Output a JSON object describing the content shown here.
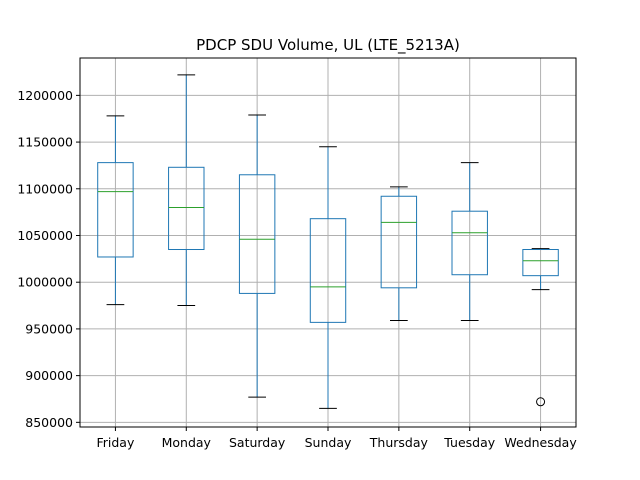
{
  "chart_data": {
    "type": "box",
    "title": "PDCP SDU Volume, UL (LTE_5213A)",
    "xlabel": "",
    "ylabel": "",
    "ylim": [
      845000,
      1240000
    ],
    "grid": true,
    "legend": "none",
    "yticks": [
      850000,
      900000,
      950000,
      1000000,
      1050000,
      1100000,
      1150000,
      1200000
    ],
    "categories": [
      "Friday",
      "Monday",
      "Saturday",
      "Sunday",
      "Thursday",
      "Tuesday",
      "Wednesday"
    ],
    "boxes": [
      {
        "category": "Friday",
        "whisker_low": 976000,
        "q1": 1027000,
        "median": 1097000,
        "q3": 1128000,
        "whisker_high": 1178000,
        "outliers": []
      },
      {
        "category": "Monday",
        "whisker_low": 975000,
        "q1": 1035000,
        "median": 1080000,
        "q3": 1123000,
        "whisker_high": 1222000,
        "outliers": []
      },
      {
        "category": "Saturday",
        "whisker_low": 877000,
        "q1": 988000,
        "median": 1046000,
        "q3": 1115000,
        "whisker_high": 1179000,
        "outliers": []
      },
      {
        "category": "Sunday",
        "whisker_low": 865000,
        "q1": 957000,
        "median": 995000,
        "q3": 1068000,
        "whisker_high": 1145000,
        "outliers": []
      },
      {
        "category": "Thursday",
        "whisker_low": 959000,
        "q1": 994000,
        "median": 1064000,
        "q3": 1092000,
        "whisker_high": 1102000,
        "outliers": []
      },
      {
        "category": "Tuesday",
        "whisker_low": 959000,
        "q1": 1008000,
        "median": 1053000,
        "q3": 1076000,
        "whisker_high": 1128000,
        "outliers": []
      },
      {
        "category": "Wednesday",
        "whisker_low": 992000,
        "q1": 1007000,
        "median": 1023000,
        "q3": 1035000,
        "whisker_high": 1036000,
        "outliers": [
          872000
        ]
      }
    ],
    "colors": {
      "box": "#1f77b4",
      "median": "#2ca02c",
      "whisker_cap": "#000000",
      "grid": "#b0b0b0",
      "outlier": "#000000"
    }
  }
}
